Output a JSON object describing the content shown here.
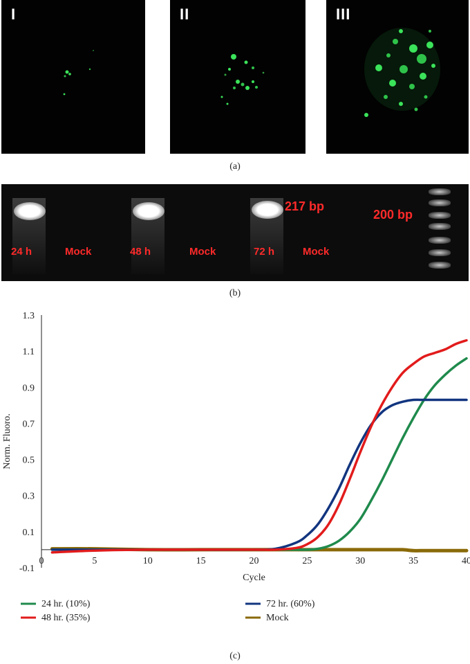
{
  "panel_a": {
    "labels": [
      "I",
      "II",
      "III"
    ],
    "caption": "(a)"
  },
  "panel_b": {
    "lanes": [
      "24 h",
      "Mock",
      "48 h",
      "Mock",
      "72 h",
      "Mock"
    ],
    "band_label": "217 bp",
    "ladder_label": "200 bp",
    "caption": "(b)"
  },
  "panel_c": {
    "caption": "(c)"
  },
  "colors": {
    "series_24": "#1f8a4c",
    "series_48": "#e21b1b",
    "series_72": "#12357f",
    "series_mock": "#8a6a08",
    "fluorescence": "#3be35a",
    "gel_text": "#ff2a2a"
  },
  "chart_data": {
    "type": "line",
    "title": "",
    "xlabel": "Cycle",
    "ylabel": "Norm. Fluoro.",
    "xlim": [
      0,
      40
    ],
    "ylim": [
      -0.1,
      1.3
    ],
    "xticks": [
      0,
      5,
      10,
      15,
      20,
      25,
      30,
      35,
      40
    ],
    "yticks": [
      -0.1,
      0.1,
      0.3,
      0.5,
      0.7,
      0.9,
      1.1,
      1.3
    ],
    "ytick_labels": [
      "-0.1",
      "0.1",
      "0.3",
      "0.5",
      "0.7",
      "0.9",
      "1.1",
      "1.3"
    ],
    "x": [
      1,
      5,
      10,
      15,
      20,
      22,
      24,
      25,
      26,
      27,
      28,
      29,
      30,
      31,
      32,
      33,
      34,
      35,
      36,
      37,
      38,
      39,
      40
    ],
    "series": [
      {
        "name": "24 hr. (10%)",
        "color": "#1f8a4c",
        "values": [
          0.0,
          0.0,
          0.0,
          0.0,
          0.0,
          0.0,
          0.0,
          0.0,
          0.005,
          0.02,
          0.05,
          0.1,
          0.17,
          0.27,
          0.38,
          0.5,
          0.62,
          0.73,
          0.83,
          0.91,
          0.97,
          1.02,
          1.06
        ]
      },
      {
        "name": "48 hr. (35%)",
        "color": "#e21b1b",
        "values": [
          -0.015,
          -0.005,
          0.0,
          0.0,
          0.0,
          0.0,
          0.01,
          0.03,
          0.07,
          0.14,
          0.25,
          0.39,
          0.54,
          0.68,
          0.8,
          0.9,
          0.98,
          1.03,
          1.07,
          1.09,
          1.11,
          1.14,
          1.16
        ]
      },
      {
        "name": "72 hr. (60%)",
        "color": "#12357f",
        "values": [
          0.0,
          0.0,
          0.0,
          0.0,
          0.0,
          0.005,
          0.04,
          0.08,
          0.14,
          0.23,
          0.34,
          0.47,
          0.59,
          0.69,
          0.76,
          0.8,
          0.82,
          0.83,
          0.83,
          0.83,
          0.83,
          0.83,
          0.83
        ]
      },
      {
        "name": "Mock",
        "color": "#8a6a08",
        "values": [
          0.005,
          0.005,
          0.0,
          0.0,
          0.0,
          0.0,
          0.0,
          0.0,
          0.0,
          0.0,
          0.0,
          0.0,
          0.0,
          0.0,
          0.0,
          0.0,
          0.0,
          -0.005,
          -0.005,
          -0.005,
          -0.005,
          -0.005,
          -0.005
        ]
      }
    ],
    "legend": [
      "24 hr. (10%)",
      "72 hr. (60%)",
      "48 hr. (35%)",
      "Mock"
    ],
    "legend_position": "bottom",
    "grid": false
  }
}
